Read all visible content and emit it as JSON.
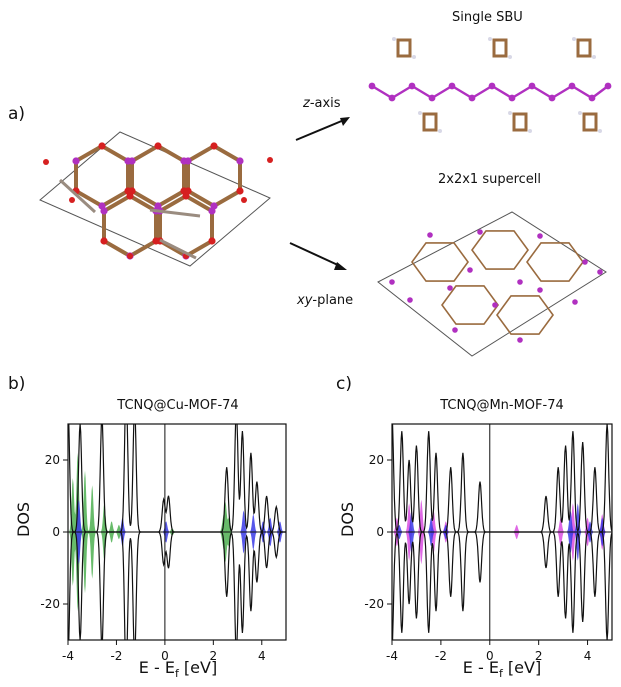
{
  "figure": {
    "panel_a": {
      "letter": "a)",
      "arrow_top_label_italic": "z",
      "arrow_top_label_rest": "-axis",
      "arrow_bottom_label_italic": "xy",
      "arrow_bottom_label_rest": "-plane",
      "single_sbu_title": "Single SBU",
      "supercell_title": "2x2x1 supercell"
    },
    "panel_b": {
      "letter": "b)"
    },
    "panel_c": {
      "letter": "c)"
    },
    "colors": {
      "carbon": "#9a6b3f",
      "oxygen": "#d62020",
      "metal": "#b030c0",
      "hydrogen": "#d8d8e6",
      "green": "#4caf50",
      "blue": "#3a3ae6",
      "magenta": "#d94ee0",
      "line": "#111111"
    }
  },
  "chart_data": [
    {
      "type": "area",
      "title": "TCNQ@Cu-MOF-74",
      "xlabel": "E - E_f [eV]",
      "ylabel": "DOS",
      "xlim": [
        -4,
        5
      ],
      "ylim": [
        -30,
        30
      ],
      "xticks": [
        -4,
        -2,
        0,
        2,
        4
      ],
      "yticks": [
        -20,
        0,
        20
      ],
      "fermi_line_x": 0,
      "series": [
        {
          "kind": "filled",
          "color_key": "green",
          "peaks": [
            [
              -3.8,
              15
            ],
            [
              -3.6,
              22
            ],
            [
              -3.3,
              17
            ],
            [
              -3.0,
              13
            ],
            [
              -2.5,
              8
            ],
            [
              -2.2,
              3
            ],
            [
              -1.9,
              2
            ],
            [
              0.3,
              1
            ],
            [
              2.4,
              3
            ],
            [
              2.5,
              8
            ],
            [
              2.65,
              4
            ]
          ]
        },
        {
          "kind": "filled",
          "color_key": "blue",
          "peaks": [
            [
              -3.55,
              9
            ],
            [
              -1.75,
              4
            ],
            [
              0.05,
              3
            ],
            [
              3.25,
              6
            ],
            [
              3.65,
              5
            ],
            [
              4.05,
              3
            ],
            [
              4.35,
              4
            ],
            [
              4.75,
              3
            ]
          ]
        },
        {
          "kind": "outline",
          "color_key": "line",
          "peaks": [
            [
              -4,
              35
            ],
            [
              -3.5,
              30
            ],
            [
              -2.6,
              32
            ],
            [
              -1.6,
              40
            ],
            [
              -1.25,
              35
            ],
            [
              -0.05,
              9
            ],
            [
              0.15,
              10
            ],
            [
              2.55,
              18
            ],
            [
              2.95,
              34
            ],
            [
              3.2,
              28
            ],
            [
              3.55,
              22
            ],
            [
              3.8,
              14
            ],
            [
              4.2,
              10
            ],
            [
              4.6,
              7
            ]
          ]
        }
      ]
    },
    {
      "type": "area",
      "title": "TCNQ@Mn-MOF-74",
      "xlabel": "E - E_f [eV]",
      "ylabel": "DOS",
      "xlim": [
        -4,
        5
      ],
      "ylim": [
        -30,
        30
      ],
      "xticks": [
        -4,
        -2,
        0,
        2,
        4
      ],
      "yticks": [
        -20,
        0,
        20
      ],
      "fermi_line_x": 0,
      "series": [
        {
          "kind": "filled",
          "color_key": "magenta",
          "peaks": [
            [
              -3.8,
              4
            ],
            [
              -3.3,
              8
            ],
            [
              -2.8,
              9
            ],
            [
              -2.3,
              6
            ],
            [
              -1.8,
              3
            ],
            [
              1.1,
              2
            ],
            [
              2.9,
              4
            ],
            [
              3.4,
              8
            ],
            [
              4.0,
              4
            ],
            [
              4.6,
              5
            ]
          ]
        },
        {
          "kind": "filled",
          "color_key": "blue",
          "peaks": [
            [
              -3.7,
              2
            ],
            [
              -3.2,
              6
            ],
            [
              -2.4,
              4
            ],
            [
              -1.8,
              2
            ],
            [
              3.3,
              6
            ],
            [
              3.6,
              8
            ],
            [
              4.1,
              3
            ],
            [
              4.6,
              4
            ]
          ]
        },
        {
          "kind": "outline",
          "color_key": "line",
          "peaks": [
            [
              -4,
              32
            ],
            [
              -3.6,
              28
            ],
            [
              -3.3,
              20
            ],
            [
              -3.0,
              24
            ],
            [
              -2.5,
              28
            ],
            [
              -2.2,
              22
            ],
            [
              -1.6,
              18
            ],
            [
              -1.1,
              22
            ],
            [
              -0.4,
              14
            ],
            [
              2.3,
              10
            ],
            [
              2.8,
              18
            ],
            [
              3.1,
              24
            ],
            [
              3.4,
              28
            ],
            [
              3.8,
              25
            ],
            [
              4.3,
              18
            ],
            [
              4.8,
              30
            ]
          ]
        }
      ]
    }
  ]
}
